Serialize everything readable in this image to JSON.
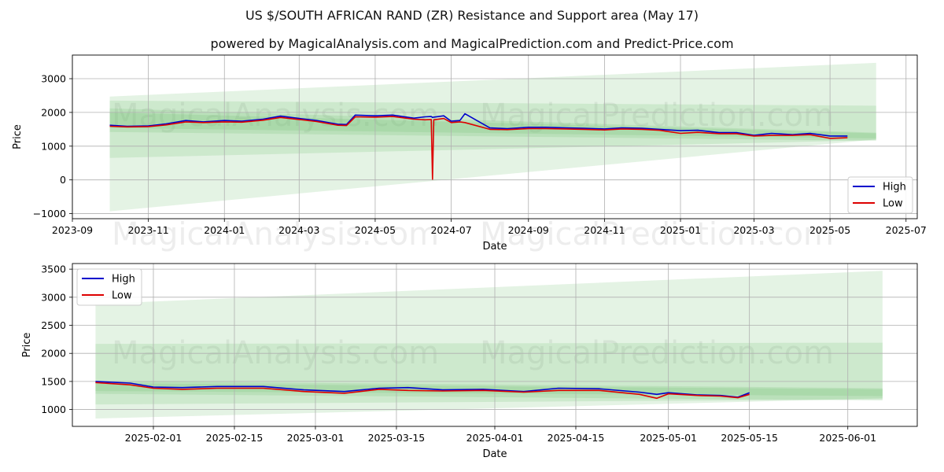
{
  "title": "US $/SOUTH AFRICAN RAND (ZR) Resistance and Support area (May 17)",
  "subtitle": "powered by MagicalAnalysis.com and MagicalPrediction.com and Predict-Price.com",
  "watermarks": [
    "MagicalAnalysis.com",
    "MagicalPrediction.com"
  ],
  "colors": {
    "high": "#0000cc",
    "low": "#dd0000",
    "band": "#5cb85c",
    "grid": "#b0b0b0"
  },
  "chart_data": [
    {
      "type": "line",
      "xlabel": "Date",
      "ylabel": "Price",
      "xlim": [
        "2023-09-01",
        "2025-07-10"
      ],
      "ylim": [
        -1150,
        3700
      ],
      "grid": true,
      "legend_position": "lower-right",
      "x_ticks": [
        "2023-09",
        "2023-11",
        "2024-01",
        "2024-03",
        "2024-05",
        "2024-07",
        "2024-09",
        "2024-11",
        "2025-01",
        "2025-03",
        "2025-05",
        "2025-07"
      ],
      "y_ticks": [
        -1000,
        0,
        1000,
        2000,
        3000
      ],
      "series": [
        {
          "name": "High",
          "x": [
            "2023-10-01",
            "2023-10-15",
            "2023-11-01",
            "2023-11-15",
            "2023-12-01",
            "2023-12-15",
            "2024-01-01",
            "2024-01-15",
            "2024-02-01",
            "2024-02-15",
            "2024-03-01",
            "2024-03-15",
            "2024-04-01",
            "2024-04-08",
            "2024-04-15",
            "2024-05-01",
            "2024-05-15",
            "2024-06-01",
            "2024-06-10",
            "2024-06-15",
            "2024-06-16",
            "2024-06-17",
            "2024-06-25",
            "2024-07-01",
            "2024-07-08",
            "2024-07-12",
            "2024-08-01",
            "2024-08-15",
            "2024-09-01",
            "2024-09-15",
            "2024-10-01",
            "2024-10-15",
            "2024-11-01",
            "2024-11-15",
            "2024-12-01",
            "2024-12-15",
            "2025-01-01",
            "2025-01-15",
            "2025-02-01",
            "2025-02-15",
            "2025-03-01",
            "2025-03-15",
            "2025-04-01",
            "2025-04-15",
            "2025-05-01",
            "2025-05-15"
          ],
          "values": [
            1620,
            1590,
            1600,
            1660,
            1760,
            1720,
            1760,
            1740,
            1800,
            1890,
            1820,
            1760,
            1650,
            1640,
            1920,
            1900,
            1920,
            1830,
            1870,
            1880,
            1850,
            1860,
            1900,
            1740,
            1760,
            1960,
            1540,
            1520,
            1560,
            1560,
            1540,
            1530,
            1510,
            1540,
            1530,
            1500,
            1460,
            1470,
            1400,
            1400,
            1320,
            1380,
            1340,
            1380,
            1300,
            1300
          ]
        },
        {
          "name": "Low",
          "x": [
            "2023-10-01",
            "2023-10-15",
            "2023-11-01",
            "2023-11-15",
            "2023-12-01",
            "2023-12-15",
            "2024-01-01",
            "2024-01-15",
            "2024-02-01",
            "2024-02-15",
            "2024-03-01",
            "2024-03-15",
            "2024-04-01",
            "2024-04-08",
            "2024-04-15",
            "2024-05-01",
            "2024-05-15",
            "2024-06-01",
            "2024-06-10",
            "2024-06-15",
            "2024-06-16",
            "2024-06-17",
            "2024-06-25",
            "2024-07-01",
            "2024-07-08",
            "2024-07-12",
            "2024-08-01",
            "2024-08-15",
            "2024-09-01",
            "2024-09-15",
            "2024-10-01",
            "2024-10-15",
            "2024-11-01",
            "2024-11-15",
            "2024-12-01",
            "2024-12-15",
            "2025-01-01",
            "2025-01-15",
            "2025-02-01",
            "2025-02-15",
            "2025-03-01",
            "2025-03-15",
            "2025-04-01",
            "2025-04-15",
            "2025-05-01",
            "2025-05-15"
          ],
          "values": [
            1590,
            1570,
            1580,
            1630,
            1720,
            1700,
            1720,
            1710,
            1770,
            1850,
            1790,
            1730,
            1620,
            1610,
            1870,
            1860,
            1880,
            1800,
            1780,
            1790,
            20,
            1780,
            1820,
            1700,
            1720,
            1700,
            1500,
            1490,
            1520,
            1520,
            1510,
            1500,
            1480,
            1510,
            1500,
            1470,
            1380,
            1410,
            1370,
            1370,
            1300,
            1320,
            1320,
            1340,
            1230,
            1250
          ]
        }
      ],
      "bands": [
        {
          "x": [
            "2023-10-01",
            "2025-06-07"
          ],
          "upper": [
            2470,
            3470
          ],
          "lower": [
            -930,
            1200
          ]
        },
        {
          "x": [
            "2023-10-01",
            "2025-06-07"
          ],
          "upper": [
            2350,
            2200
          ],
          "lower": [
            650,
            1180
          ]
        },
        {
          "x": [
            "2023-10-01",
            "2025-06-07"
          ],
          "upper": [
            2120,
            1400
          ],
          "lower": [
            1420,
            1160
          ]
        },
        {
          "x": [
            "2023-10-01",
            "2025-06-07"
          ],
          "upper": [
            2000,
            1380
          ],
          "lower": [
            1540,
            1230
          ]
        }
      ]
    },
    {
      "type": "line",
      "xlabel": "Date",
      "ylabel": "Price",
      "xlim": [
        "2025-01-18",
        "2025-06-13"
      ],
      "ylim": [
        700,
        3600
      ],
      "grid": true,
      "legend_position": "upper-left",
      "x_ticks": [
        "2025-02-01",
        "2025-02-15",
        "2025-03-01",
        "2025-03-15",
        "2025-04-01",
        "2025-04-15",
        "2025-05-01",
        "2025-05-15",
        "2025-06-01"
      ],
      "y_ticks": [
        1000,
        1500,
        2000,
        2500,
        3000,
        3500
      ],
      "series": [
        {
          "name": "High",
          "x": [
            "2025-01-22",
            "2025-01-28",
            "2025-02-01",
            "2025-02-06",
            "2025-02-12",
            "2025-02-20",
            "2025-02-27",
            "2025-03-06",
            "2025-03-12",
            "2025-03-17",
            "2025-03-23",
            "2025-03-30",
            "2025-04-06",
            "2025-04-12",
            "2025-04-19",
            "2025-04-26",
            "2025-04-29",
            "2025-05-01",
            "2025-05-06",
            "2025-05-10",
            "2025-05-13",
            "2025-05-15"
          ],
          "values": [
            1500,
            1470,
            1400,
            1390,
            1410,
            1410,
            1350,
            1320,
            1380,
            1390,
            1350,
            1360,
            1320,
            1380,
            1370,
            1310,
            1270,
            1300,
            1260,
            1250,
            1220,
            1300
          ]
        },
        {
          "name": "Low",
          "x": [
            "2025-01-22",
            "2025-01-28",
            "2025-02-01",
            "2025-02-06",
            "2025-02-12",
            "2025-02-20",
            "2025-02-27",
            "2025-03-06",
            "2025-03-12",
            "2025-03-17",
            "2025-03-23",
            "2025-03-30",
            "2025-04-06",
            "2025-04-12",
            "2025-04-19",
            "2025-04-26",
            "2025-04-29",
            "2025-05-01",
            "2025-05-06",
            "2025-05-10",
            "2025-05-13",
            "2025-05-15"
          ],
          "values": [
            1480,
            1440,
            1380,
            1360,
            1380,
            1380,
            1320,
            1290,
            1360,
            1340,
            1330,
            1340,
            1310,
            1340,
            1340,
            1270,
            1200,
            1280,
            1250,
            1240,
            1210,
            1270
          ]
        }
      ],
      "bands": [
        {
          "x": [
            "2025-01-22",
            "2025-06-07"
          ],
          "upper": [
            2880,
            3470
          ],
          "lower": [
            840,
            1200
          ]
        },
        {
          "x": [
            "2025-01-22",
            "2025-06-07"
          ],
          "upper": [
            2170,
            2190
          ],
          "lower": [
            1090,
            1180
          ]
        },
        {
          "x": [
            "2025-01-22",
            "2025-06-07"
          ],
          "upper": [
            1510,
            1380
          ],
          "lower": [
            1280,
            1160
          ]
        },
        {
          "x": [
            "2025-01-22",
            "2025-06-07"
          ],
          "upper": [
            1470,
            1360
          ],
          "lower": [
            1330,
            1240
          ]
        }
      ]
    }
  ]
}
